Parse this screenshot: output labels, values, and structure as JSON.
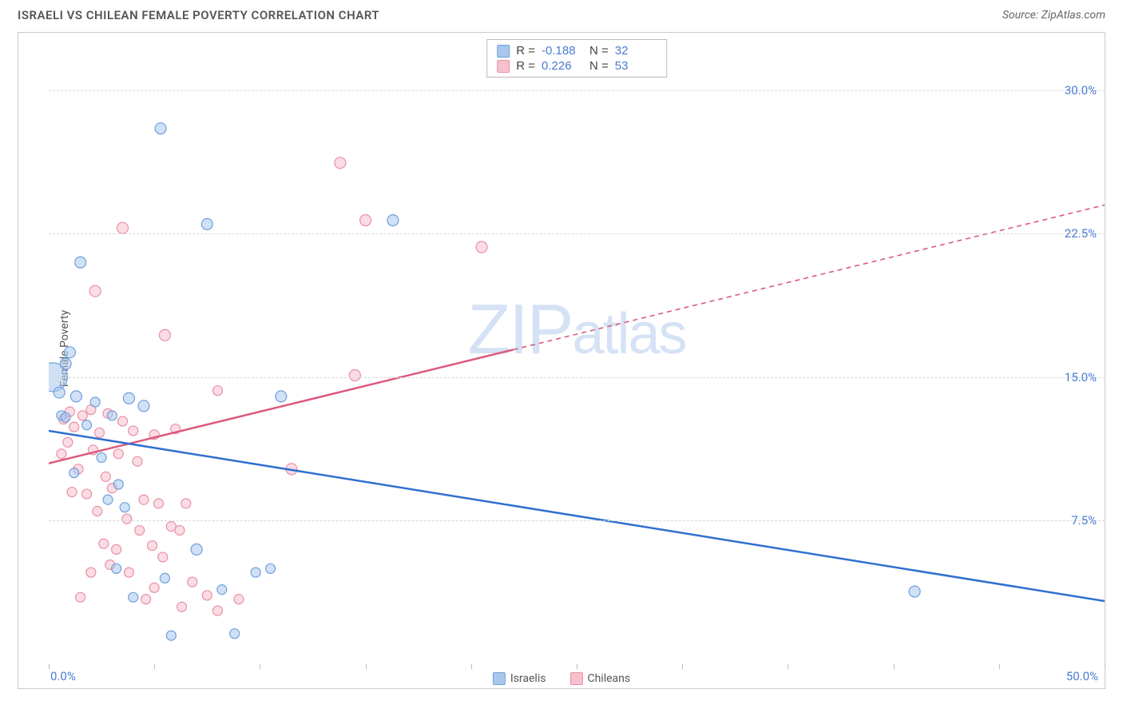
{
  "title": "ISRAELI VS CHILEAN FEMALE POVERTY CORRELATION CHART",
  "source": "Source: ZipAtlas.com",
  "watermark_a": "ZIP",
  "watermark_b": "atlas",
  "ylabel": "Female Poverty",
  "series": {
    "israelis": {
      "label": "Israelis",
      "color_fill": "#a9c7ec",
      "color_stroke": "#6fa0dd",
      "line_color": "#2f6fd0",
      "R": "-0.188",
      "N": "32"
    },
    "chileans": {
      "label": "Chileans",
      "color_fill": "#f5c1cd",
      "color_stroke": "#e98fa5",
      "line_color": "#dc5a7d",
      "R": "0.226",
      "N": "53"
    }
  },
  "stats_labels": {
    "R": "R =",
    "N": "N ="
  },
  "axes": {
    "xlim": [
      0,
      50
    ],
    "ylim": [
      0,
      33
    ],
    "yticks": [
      {
        "v": 7.5,
        "label": "7.5%"
      },
      {
        "v": 15.0,
        "label": "15.0%"
      },
      {
        "v": 22.5,
        "label": "22.5%"
      },
      {
        "v": 30.0,
        "label": "30.0%"
      }
    ],
    "xtick_positions": [
      0,
      5,
      10,
      15,
      20,
      25,
      30,
      35,
      40,
      45,
      50
    ],
    "x_left_label": "0.0%",
    "x_right_label": "50.0%",
    "grid_color": "#d8d8d8"
  },
  "trend_lines": {
    "israelis": {
      "x1": 0,
      "y1": 12.2,
      "x2": 50,
      "y2": 3.3,
      "solid_until_x": 50
    },
    "chileans": {
      "x1": 0,
      "y1": 10.5,
      "x2": 50,
      "y2": 24.0,
      "solid_until_x": 22
    }
  },
  "points": {
    "israelis": [
      {
        "x": 0.2,
        "y": 15.0,
        "r": 18
      },
      {
        "x": 5.3,
        "y": 28.0,
        "r": 7
      },
      {
        "x": 7.5,
        "y": 23.0,
        "r": 7
      },
      {
        "x": 16.3,
        "y": 23.2,
        "r": 7
      },
      {
        "x": 1.5,
        "y": 21.0,
        "r": 7
      },
      {
        "x": 1.0,
        "y": 16.3,
        "r": 7
      },
      {
        "x": 0.8,
        "y": 15.7,
        "r": 7
      },
      {
        "x": 0.5,
        "y": 14.2,
        "r": 7
      },
      {
        "x": 1.3,
        "y": 14.0,
        "r": 7
      },
      {
        "x": 3.8,
        "y": 13.9,
        "r": 7
      },
      {
        "x": 2.2,
        "y": 13.7,
        "r": 6
      },
      {
        "x": 4.5,
        "y": 13.5,
        "r": 7
      },
      {
        "x": 3.0,
        "y": 13.0,
        "r": 6
      },
      {
        "x": 0.6,
        "y": 13.0,
        "r": 6
      },
      {
        "x": 1.8,
        "y": 12.5,
        "r": 6
      },
      {
        "x": 11.0,
        "y": 14.0,
        "r": 7
      },
      {
        "x": 2.5,
        "y": 10.8,
        "r": 6
      },
      {
        "x": 1.2,
        "y": 10.0,
        "r": 6
      },
      {
        "x": 3.3,
        "y": 9.4,
        "r": 6
      },
      {
        "x": 2.8,
        "y": 8.6,
        "r": 6
      },
      {
        "x": 3.6,
        "y": 8.2,
        "r": 6
      },
      {
        "x": 0.8,
        "y": 12.9,
        "r": 6
      },
      {
        "x": 7.0,
        "y": 6.0,
        "r": 7
      },
      {
        "x": 3.2,
        "y": 5.0,
        "r": 6
      },
      {
        "x": 5.5,
        "y": 4.5,
        "r": 6
      },
      {
        "x": 8.2,
        "y": 3.9,
        "r": 6
      },
      {
        "x": 9.8,
        "y": 4.8,
        "r": 6
      },
      {
        "x": 10.5,
        "y": 5.0,
        "r": 6
      },
      {
        "x": 5.8,
        "y": 1.5,
        "r": 6
      },
      {
        "x": 8.8,
        "y": 1.6,
        "r": 6
      },
      {
        "x": 4.0,
        "y": 3.5,
        "r": 6
      },
      {
        "x": 41.0,
        "y": 3.8,
        "r": 7
      }
    ],
    "chileans": [
      {
        "x": 13.8,
        "y": 26.2,
        "r": 7
      },
      {
        "x": 15.0,
        "y": 23.2,
        "r": 7
      },
      {
        "x": 20.5,
        "y": 21.8,
        "r": 7
      },
      {
        "x": 3.5,
        "y": 22.8,
        "r": 7
      },
      {
        "x": 2.2,
        "y": 19.5,
        "r": 7
      },
      {
        "x": 5.5,
        "y": 17.2,
        "r": 7
      },
      {
        "x": 14.5,
        "y": 15.1,
        "r": 7
      },
      {
        "x": 8.0,
        "y": 14.3,
        "r": 6
      },
      {
        "x": 1.0,
        "y": 13.2,
        "r": 6
      },
      {
        "x": 0.7,
        "y": 12.8,
        "r": 6
      },
      {
        "x": 1.6,
        "y": 13.0,
        "r": 6
      },
      {
        "x": 2.0,
        "y": 13.3,
        "r": 6
      },
      {
        "x": 2.8,
        "y": 13.1,
        "r": 6
      },
      {
        "x": 3.5,
        "y": 12.7,
        "r": 6
      },
      {
        "x": 1.2,
        "y": 12.4,
        "r": 6
      },
      {
        "x": 2.4,
        "y": 12.1,
        "r": 6
      },
      {
        "x": 4.0,
        "y": 12.2,
        "r": 6
      },
      {
        "x": 5.0,
        "y": 12.0,
        "r": 6
      },
      {
        "x": 6.0,
        "y": 12.3,
        "r": 6
      },
      {
        "x": 0.9,
        "y": 11.6,
        "r": 6
      },
      {
        "x": 2.1,
        "y": 11.2,
        "r": 6
      },
      {
        "x": 3.3,
        "y": 11.0,
        "r": 6
      },
      {
        "x": 4.2,
        "y": 10.6,
        "r": 6
      },
      {
        "x": 1.4,
        "y": 10.2,
        "r": 6
      },
      {
        "x": 2.7,
        "y": 9.8,
        "r": 6
      },
      {
        "x": 11.5,
        "y": 10.2,
        "r": 7
      },
      {
        "x": 3.0,
        "y": 9.2,
        "r": 6
      },
      {
        "x": 1.8,
        "y": 8.9,
        "r": 6
      },
      {
        "x": 4.5,
        "y": 8.6,
        "r": 6
      },
      {
        "x": 5.2,
        "y": 8.4,
        "r": 6
      },
      {
        "x": 6.5,
        "y": 8.4,
        "r": 6
      },
      {
        "x": 2.3,
        "y": 8.0,
        "r": 6
      },
      {
        "x": 3.7,
        "y": 7.6,
        "r": 6
      },
      {
        "x": 5.8,
        "y": 7.2,
        "r": 6
      },
      {
        "x": 4.3,
        "y": 7.0,
        "r": 6
      },
      {
        "x": 6.2,
        "y": 7.0,
        "r": 6
      },
      {
        "x": 2.6,
        "y": 6.3,
        "r": 6
      },
      {
        "x": 4.9,
        "y": 6.2,
        "r": 6
      },
      {
        "x": 3.2,
        "y": 6.0,
        "r": 6
      },
      {
        "x": 5.4,
        "y": 5.6,
        "r": 6
      },
      {
        "x": 6.8,
        "y": 4.3,
        "r": 6
      },
      {
        "x": 2.0,
        "y": 4.8,
        "r": 6
      },
      {
        "x": 7.5,
        "y": 3.6,
        "r": 6
      },
      {
        "x": 9.0,
        "y": 3.4,
        "r": 6
      },
      {
        "x": 4.6,
        "y": 3.4,
        "r": 6
      },
      {
        "x": 1.5,
        "y": 3.5,
        "r": 6
      },
      {
        "x": 6.3,
        "y": 3.0,
        "r": 6
      },
      {
        "x": 8.0,
        "y": 2.8,
        "r": 6
      },
      {
        "x": 5.0,
        "y": 4.0,
        "r": 6
      },
      {
        "x": 3.8,
        "y": 4.8,
        "r": 6
      },
      {
        "x": 2.9,
        "y": 5.2,
        "r": 6
      },
      {
        "x": 1.1,
        "y": 9.0,
        "r": 6
      },
      {
        "x": 0.6,
        "y": 11.0,
        "r": 6
      }
    ]
  }
}
